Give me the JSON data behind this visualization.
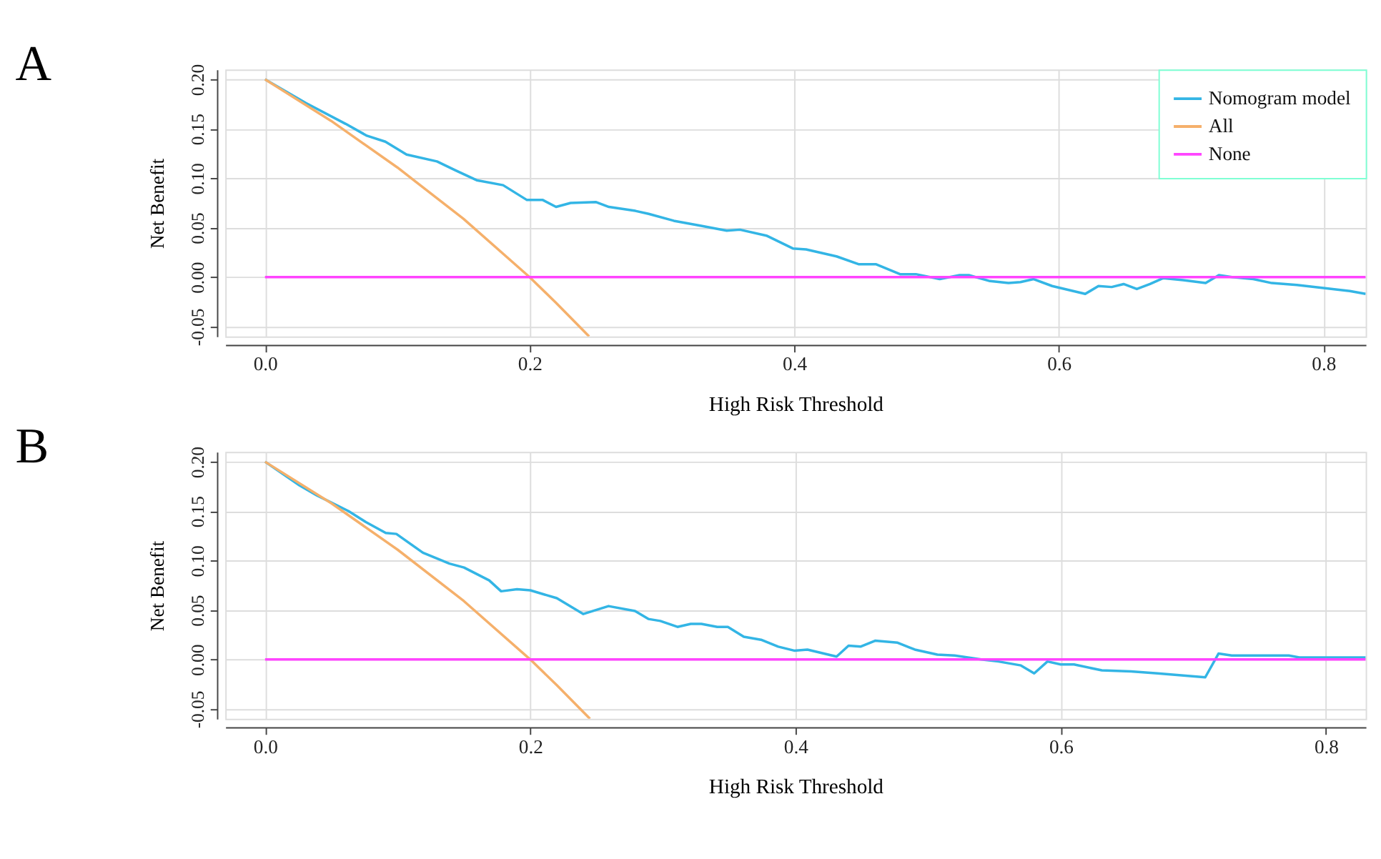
{
  "chart_data": [
    {
      "type": "line",
      "title": "A",
      "xlabel": "High Risk Threshold",
      "ylabel": "Net Benefit",
      "xlim": [
        -0.03,
        0.832
      ],
      "ylim": [
        -0.06,
        0.21
      ],
      "xticks": [
        {
          "value": 0,
          "label": "0.0"
        },
        {
          "value": 0.2,
          "label": "0.2"
        },
        {
          "value": 0.4,
          "label": "0.4"
        },
        {
          "value": 0.6,
          "label": "0.6"
        },
        {
          "value": 0.8,
          "label": "0.8"
        }
      ],
      "yticks": [
        {
          "value": -0.05,
          "label": "-0.05"
        },
        {
          "value": 0,
          "label": "0.00"
        },
        {
          "value": 0.05,
          "label": "0.05"
        },
        {
          "value": 0.1,
          "label": "0.10"
        },
        {
          "value": 0.15,
          "label": "0.15"
        },
        {
          "value": 0.2,
          "label": "0.20"
        }
      ],
      "grid": true,
      "legend": "top right",
      "line_style": "solid",
      "marker": "none",
      "series": [
        {
          "name": "Nomogram model",
          "color": "#33b5e5",
          "x": [
            0,
            0.031,
            0.061,
            0.077,
            0.091,
            0.107,
            0.13,
            0.144,
            0.16,
            0.18,
            0.198,
            0.21,
            0.22,
            0.231,
            0.25,
            0.26,
            0.28,
            0.29,
            0.309,
            0.329,
            0.349,
            0.359,
            0.379,
            0.399,
            0.409,
            0.432,
            0.449,
            0.462,
            0.48,
            0.492,
            0.51,
            0.525,
            0.532,
            0.548,
            0.562,
            0.571,
            0.581,
            0.595,
            0.62,
            0.63,
            0.64,
            0.649,
            0.659,
            0.669,
            0.679,
            0.694,
            0.711,
            0.721,
            0.731,
            0.747,
            0.761,
            0.78,
            0.8,
            0.82,
            0.832
          ],
          "values": [
            0.2,
            0.176,
            0.155,
            0.143,
            0.137,
            0.124,
            0.117,
            0.108,
            0.098,
            0.093,
            0.078,
            0.078,
            0.071,
            0.075,
            0.076,
            0.071,
            0.067,
            0.064,
            0.057,
            0.052,
            0.047,
            0.048,
            0.042,
            0.029,
            0.028,
            0.021,
            0.013,
            0.013,
            0.003,
            0.003,
            -0.002,
            0.002,
            0.002,
            -0.004,
            -0.006,
            -0.005,
            -0.002,
            -0.009,
            -0.017,
            -0.009,
            -0.01,
            -0.007,
            -0.012,
            -0.007,
            -0.001,
            -0.003,
            -0.006,
            0.002,
            0.0,
            -0.002,
            -0.006,
            -0.008,
            -0.011,
            -0.014,
            -0.017
          ]
        },
        {
          "name": "All",
          "color": "#f5b06b",
          "x": [
            0,
            0.05,
            0.1,
            0.15,
            0.2,
            0.22,
            0.245
          ],
          "values": [
            0.2,
            0.158,
            0.111,
            0.059,
            0.0,
            -0.026,
            -0.06
          ]
        },
        {
          "name": "None",
          "color": "#ff44ff",
          "x": [
            0,
            0.832
          ],
          "values": [
            0,
            0
          ]
        }
      ]
    },
    {
      "type": "line",
      "title": "B",
      "xlabel": "High Risk Threshold",
      "ylabel": "Net Benefit",
      "xlim": [
        -0.03,
        0.83
      ],
      "ylim": [
        -0.06,
        0.21
      ],
      "xticks": [
        {
          "value": 0,
          "label": "0.0"
        },
        {
          "value": 0.2,
          "label": "0.2"
        },
        {
          "value": 0.4,
          "label": "0.4"
        },
        {
          "value": 0.6,
          "label": "0.6"
        },
        {
          "value": 0.8,
          "label": "0.8"
        }
      ],
      "yticks": [
        {
          "value": -0.05,
          "label": "-0.05"
        },
        {
          "value": 0,
          "label": "0.00"
        },
        {
          "value": 0.05,
          "label": "0.05"
        },
        {
          "value": 0.1,
          "label": "0.10"
        },
        {
          "value": 0.15,
          "label": "0.15"
        },
        {
          "value": 0.2,
          "label": "0.20"
        }
      ],
      "grid": true,
      "legend": "top right",
      "line_style": "solid",
      "marker": "none",
      "series": [
        {
          "name": "Nomogram model",
          "color": "#33b5e5",
          "x": [
            0,
            0.026,
            0.039,
            0.063,
            0.076,
            0.091,
            0.099,
            0.119,
            0.139,
            0.15,
            0.169,
            0.178,
            0.19,
            0.2,
            0.22,
            0.24,
            0.259,
            0.279,
            0.289,
            0.298,
            0.311,
            0.321,
            0.329,
            0.341,
            0.349,
            0.361,
            0.374,
            0.387,
            0.399,
            0.409,
            0.431,
            0.44,
            0.449,
            0.46,
            0.477,
            0.49,
            0.507,
            0.52,
            0.54,
            0.553,
            0.57,
            0.58,
            0.59,
            0.6,
            0.61,
            0.631,
            0.653,
            0.673,
            0.709,
            0.719,
            0.729,
            0.772,
            0.78,
            0.83
          ],
          "values": [
            0.2,
            0.176,
            0.166,
            0.15,
            0.139,
            0.128,
            0.127,
            0.108,
            0.097,
            0.093,
            0.08,
            0.069,
            0.071,
            0.07,
            0.062,
            0.046,
            0.054,
            0.049,
            0.041,
            0.039,
            0.033,
            0.036,
            0.036,
            0.033,
            0.033,
            0.023,
            0.02,
            0.013,
            0.009,
            0.01,
            0.003,
            0.014,
            0.013,
            0.019,
            0.017,
            0.01,
            0.005,
            0.004,
            0.0,
            -0.002,
            -0.006,
            -0.014,
            -0.002,
            -0.005,
            -0.005,
            -0.011,
            -0.012,
            -0.014,
            -0.018,
            0.006,
            0.004,
            0.004,
            0.002,
            0.002
          ]
        },
        {
          "name": "All",
          "color": "#f5b06b",
          "x": [
            0,
            0.05,
            0.1,
            0.15,
            0.2,
            0.22,
            0.245
          ],
          "values": [
            0.2,
            0.158,
            0.111,
            0.059,
            0.0,
            -0.026,
            -0.06
          ]
        },
        {
          "name": "None",
          "color": "#ff44ff",
          "x": [
            0,
            0.83
          ],
          "values": [
            0,
            0
          ]
        }
      ]
    }
  ]
}
